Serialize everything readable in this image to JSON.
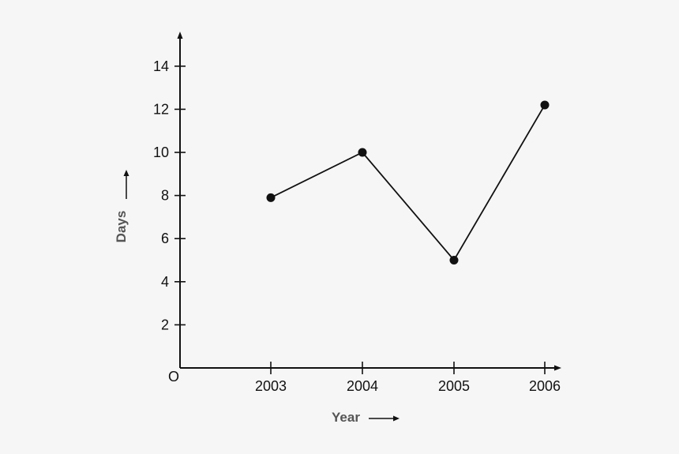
{
  "chart_data": {
    "type": "line",
    "title": "",
    "xlabel": "Year",
    "ylabel": "Days",
    "origin_label": "O",
    "categories": [
      "2003",
      "2004",
      "2005",
      "2006"
    ],
    "series": [
      {
        "values": [
          7.9,
          10,
          5,
          12.2
        ]
      }
    ],
    "y_ticks": [
      2,
      4,
      6,
      8,
      10,
      12,
      14
    ],
    "ylim": [
      0,
      15.5
    ],
    "grid": false,
    "legend": "none",
    "colors": {
      "line": "#111111",
      "axis": "#111111",
      "axis_title": "#555555",
      "background": "#f6f6f6"
    }
  }
}
